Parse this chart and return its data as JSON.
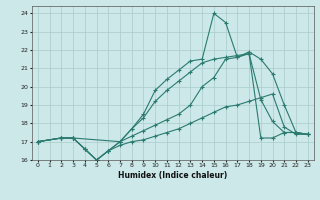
{
  "xlabel": "Humidex (Indice chaleur)",
  "bg_color": "#cce8e8",
  "grid_color": "#aacccc",
  "line_color": "#2a7a70",
  "xlim": [
    -0.5,
    23.5
  ],
  "ylim": [
    16,
    24.4
  ],
  "xticks": [
    0,
    1,
    2,
    3,
    4,
    5,
    6,
    7,
    8,
    9,
    10,
    11,
    12,
    13,
    14,
    15,
    16,
    17,
    18,
    19,
    20,
    21,
    22,
    23
  ],
  "yticks": [
    16,
    17,
    18,
    19,
    20,
    21,
    22,
    23,
    24
  ],
  "line1_x": [
    0,
    2,
    3,
    4,
    5,
    6,
    7,
    8,
    9,
    10,
    11,
    12,
    13,
    14,
    15,
    16,
    17,
    18,
    19,
    20,
    21,
    22,
    23
  ],
  "line1_y": [
    17.0,
    17.2,
    17.2,
    16.6,
    16.0,
    16.5,
    16.8,
    17.0,
    17.1,
    17.3,
    17.5,
    17.7,
    18.0,
    18.3,
    18.6,
    18.9,
    19.0,
    19.2,
    19.4,
    19.6,
    17.8,
    17.4,
    17.4
  ],
  "line2_x": [
    0,
    2,
    3,
    7,
    8,
    9,
    10,
    11,
    12,
    13,
    14,
    15,
    16,
    17,
    18,
    19,
    20,
    21,
    22,
    23
  ],
  "line2_y": [
    17.0,
    17.2,
    17.2,
    17.0,
    17.7,
    18.5,
    19.8,
    20.4,
    20.9,
    21.4,
    21.5,
    24.0,
    23.5,
    21.6,
    21.9,
    21.5,
    20.7,
    19.0,
    17.5,
    17.4
  ],
  "line3_x": [
    0,
    2,
    3,
    4,
    5,
    6,
    7,
    8,
    9,
    10,
    11,
    12,
    13,
    14,
    15,
    16,
    17,
    18,
    19,
    20,
    21,
    22,
    23
  ],
  "line3_y": [
    17.0,
    17.2,
    17.2,
    16.6,
    16.0,
    16.5,
    17.0,
    17.7,
    18.3,
    19.2,
    19.8,
    20.3,
    20.8,
    21.3,
    21.5,
    21.6,
    21.7,
    21.8,
    19.3,
    18.1,
    17.5,
    17.5,
    17.4
  ],
  "line4_x": [
    0,
    2,
    3,
    4,
    5,
    6,
    7,
    8,
    9,
    10,
    11,
    12,
    13,
    14,
    15,
    16,
    17,
    18,
    19,
    20,
    21,
    22,
    23
  ],
  "line4_y": [
    17.0,
    17.2,
    17.2,
    16.6,
    16.0,
    16.5,
    17.0,
    17.3,
    17.6,
    17.9,
    18.2,
    18.5,
    19.0,
    20.0,
    20.5,
    21.5,
    21.6,
    21.8,
    17.2,
    17.2,
    17.5,
    17.5,
    17.4
  ]
}
